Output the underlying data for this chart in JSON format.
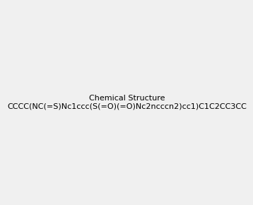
{
  "smiles": "CCCC(NC(=S)Nc1ccc(S(=O)(=O)Nc2ncccn2)cc1)C1C2CC3CC1CC(C2)C3",
  "image_size": 300,
  "background_color": "#f0f0f0",
  "title": ""
}
